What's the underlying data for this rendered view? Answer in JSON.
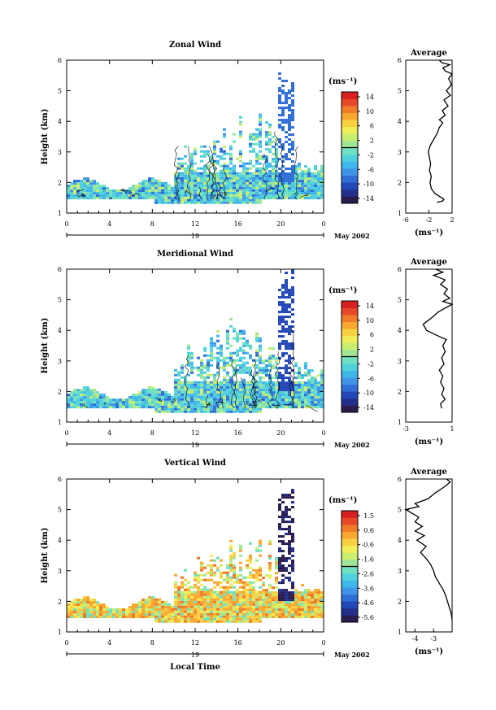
{
  "panels": [
    {
      "key": "zonal",
      "title": "Zonal Wind",
      "ylabel": "Height (km)",
      "yticks": [
        "1",
        "2",
        "3",
        "4",
        "5",
        "6"
      ],
      "xticks": [
        "0",
        "4",
        "8",
        "12",
        "16",
        "20",
        "0"
      ],
      "day_label": "19",
      "month_label": "May 2002",
      "xlabel": "",
      "colorbar": {
        "unit": "(ms⁻¹)",
        "labels": [
          "14",
          "10",
          "6",
          "2",
          "-2",
          "-6",
          "-10",
          "-14"
        ],
        "colors": [
          "#2a1c4e",
          "#232f8c",
          "#2348b8",
          "#2f6ed6",
          "#3f94e8",
          "#3fb7ea",
          "#4fd1dc",
          "#6fe0c0",
          "#9ee694",
          "#c8ee70",
          "#f0ee58",
          "#f8d040",
          "#f8a830",
          "#f07a28",
          "#e84828",
          "#d82020"
        ]
      },
      "average": {
        "title": "Average",
        "xticks": [
          "-6",
          "-2",
          "2"
        ],
        "xlim": [
          -6,
          2
        ],
        "unit": "(ms⁻¹)",
        "profile": [
          [
            -0.6,
            1.35
          ],
          [
            0.4,
            1.4
          ],
          [
            0.6,
            1.45
          ],
          [
            -0.2,
            1.55
          ],
          [
            -1.0,
            1.65
          ],
          [
            -1.6,
            1.8
          ],
          [
            -1.8,
            2.0
          ],
          [
            -1.6,
            2.2
          ],
          [
            -1.9,
            2.4
          ],
          [
            -1.7,
            2.6
          ],
          [
            -1.9,
            2.8
          ],
          [
            -2.1,
            3.0
          ],
          [
            -1.8,
            3.2
          ],
          [
            -1.2,
            3.4
          ],
          [
            -0.6,
            3.6
          ],
          [
            -0.2,
            3.8
          ],
          [
            0.4,
            3.95
          ],
          [
            -0.2,
            4.05
          ],
          [
            0.8,
            4.2
          ],
          [
            0.3,
            4.35
          ],
          [
            1.3,
            4.5
          ],
          [
            0.6,
            4.7
          ],
          [
            1.7,
            4.85
          ],
          [
            1.0,
            5.0
          ],
          [
            1.9,
            5.2
          ],
          [
            1.4,
            5.4
          ],
          [
            2.0,
            5.55
          ],
          [
            0.8,
            5.65
          ],
          [
            0.4,
            5.75
          ],
          [
            1.6,
            5.85
          ],
          [
            0.2,
            5.92
          ],
          [
            -0.2,
            6.0
          ]
        ]
      }
    },
    {
      "key": "meridional",
      "title": "Meridional Wind",
      "ylabel": "Height (km)",
      "yticks": [
        "1",
        "2",
        "3",
        "4",
        "5",
        "6"
      ],
      "xticks": [
        "0",
        "4",
        "8",
        "12",
        "16",
        "20",
        "0"
      ],
      "day_label": "19",
      "month_label": "May 2002",
      "xlabel": "",
      "colorbar": {
        "unit": "(ms⁻¹)",
        "labels": [
          "14",
          "10",
          "6",
          "2",
          "-2",
          "-6",
          "-10",
          "-14"
        ],
        "colors": [
          "#2a1c4e",
          "#232f8c",
          "#2348b8",
          "#2f6ed6",
          "#3f94e8",
          "#3fb7ea",
          "#4fd1dc",
          "#6fe0c0",
          "#9ee694",
          "#c8ee70",
          "#f0ee58",
          "#f8d040",
          "#f8a830",
          "#f07a28",
          "#e84828",
          "#d82020"
        ]
      },
      "average": {
        "title": "Average",
        "xticks": [
          "-3",
          "1"
        ],
        "xlim": [
          -3,
          1
        ],
        "unit": "(ms⁻¹)",
        "profile": [
          [
            0.1,
            1.45
          ],
          [
            0.0,
            1.6
          ],
          [
            0.4,
            1.75
          ],
          [
            0.1,
            1.9
          ],
          [
            0.3,
            2.1
          ],
          [
            0.0,
            2.3
          ],
          [
            0.2,
            2.5
          ],
          [
            -0.1,
            2.7
          ],
          [
            0.3,
            2.9
          ],
          [
            0.1,
            3.1
          ],
          [
            0.4,
            3.3
          ],
          [
            0.2,
            3.5
          ],
          [
            0.5,
            3.7
          ],
          [
            -0.4,
            3.85
          ],
          [
            -1.2,
            4.0
          ],
          [
            -1.5,
            4.2
          ],
          [
            -0.8,
            4.4
          ],
          [
            -0.2,
            4.6
          ],
          [
            0.5,
            4.75
          ],
          [
            1.0,
            4.85
          ],
          [
            0.2,
            4.95
          ],
          [
            0.8,
            5.05
          ],
          [
            0.3,
            5.2
          ],
          [
            0.6,
            5.35
          ],
          [
            0.0,
            5.5
          ],
          [
            0.4,
            5.65
          ],
          [
            -0.6,
            5.8
          ],
          [
            0.2,
            5.9
          ],
          [
            -0.4,
            6.0
          ]
        ]
      }
    },
    {
      "key": "vertical",
      "title": "Vertical Wind",
      "ylabel": "Height (km)",
      "yticks": [
        "1",
        "2",
        "3",
        "4",
        "5",
        "6"
      ],
      "xticks": [
        "0",
        "4",
        "8",
        "12",
        "16",
        "20",
        "0"
      ],
      "day_label": "19",
      "month_label": "May 2002",
      "xlabel": "Local Time",
      "colorbar": {
        "unit": "(ms⁻¹)",
        "labels": [
          "1.5",
          "0.6",
          "-0.6",
          "-1.6",
          "-2.6",
          "-3.6",
          "-4.6",
          "-5.6"
        ],
        "colors": [
          "#2a1c4e",
          "#232f8c",
          "#2348b8",
          "#2f6ed6",
          "#3f94e8",
          "#3fb7ea",
          "#4fd1dc",
          "#6fe0c0",
          "#9ee694",
          "#c8ee70",
          "#f0ee58",
          "#f8d040",
          "#f8a830",
          "#f07a28",
          "#e84828",
          "#d82020"
        ]
      },
      "average": {
        "title": "Average",
        "xticks": [
          "-4",
          "-3"
        ],
        "xlim": [
          -4.5,
          -2.0
        ],
        "unit": "(ms⁻¹)",
        "profile": [
          [
            -2.0,
            1.4
          ],
          [
            -2.05,
            1.6
          ],
          [
            -2.15,
            1.8
          ],
          [
            -2.25,
            2.0
          ],
          [
            -2.35,
            2.2
          ],
          [
            -2.5,
            2.4
          ],
          [
            -2.7,
            2.6
          ],
          [
            -2.9,
            2.8
          ],
          [
            -3.0,
            3.0
          ],
          [
            -3.15,
            3.2
          ],
          [
            -3.4,
            3.4
          ],
          [
            -3.7,
            3.6
          ],
          [
            -3.4,
            3.8
          ],
          [
            -3.9,
            4.0
          ],
          [
            -3.5,
            4.15
          ],
          [
            -4.0,
            4.3
          ],
          [
            -3.6,
            4.45
          ],
          [
            -4.0,
            4.6
          ],
          [
            -3.8,
            4.75
          ],
          [
            -4.2,
            4.9
          ],
          [
            -4.5,
            5.0
          ],
          [
            -3.8,
            5.1
          ],
          [
            -4.0,
            5.2
          ],
          [
            -3.3,
            5.35
          ],
          [
            -2.9,
            5.55
          ],
          [
            -2.4,
            5.75
          ],
          [
            -2.1,
            5.9
          ],
          [
            -2.3,
            6.0
          ]
        ]
      }
    }
  ]
}
